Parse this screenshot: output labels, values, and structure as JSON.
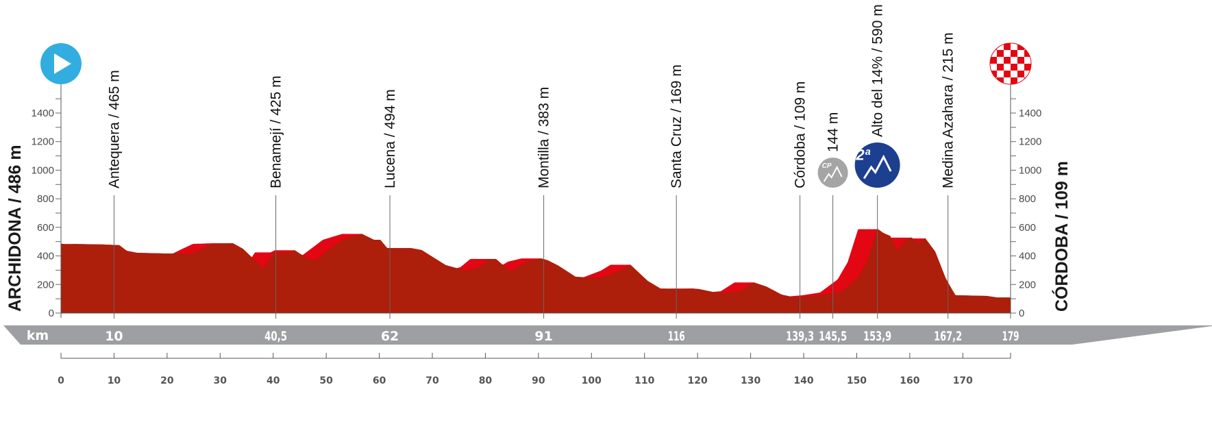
{
  "chart_data": {
    "type": "area",
    "xlabel": "km",
    "xlim": [
      0,
      179
    ],
    "ylim": [
      0,
      1500
    ],
    "y_ticks": [
      0,
      200,
      400,
      600,
      800,
      1000,
      1200,
      1400
    ],
    "x_ticks": [
      0,
      10,
      20,
      30,
      40,
      50,
      60,
      70,
      80,
      90,
      100,
      110,
      120,
      130,
      140,
      150,
      160,
      170
    ],
    "start_label": "ARCHIDONA / 486 m",
    "finish_label": "CÓRDOBA / 109 m",
    "colors": {
      "profile": "#ad1e0b",
      "profile_top": "#e30613",
      "km_bar": "#9d9fa2",
      "start": "#32ade0",
      "cat2": "#1d3f8f",
      "cp": "#a5a5a5"
    },
    "profile": [
      [
        0,
        486
      ],
      [
        1.4,
        475
      ],
      [
        2.3,
        484
      ],
      [
        8,
        480
      ],
      [
        11,
        475
      ],
      [
        12.4,
        436
      ],
      [
        14.3,
        422
      ],
      [
        19.5,
        417
      ],
      [
        24.7,
        417
      ],
      [
        26,
        441
      ],
      [
        28.5,
        484
      ],
      [
        32.4,
        489
      ],
      [
        34.3,
        450
      ],
      [
        36.3,
        379
      ],
      [
        38.2,
        312
      ],
      [
        40.2,
        425
      ],
      [
        42.7,
        417
      ],
      [
        44,
        441
      ],
      [
        46.6,
        379
      ],
      [
        47.9,
        369
      ],
      [
        49.2,
        407
      ],
      [
        53,
        513
      ],
      [
        56.7,
        555
      ],
      [
        59,
        513
      ],
      [
        60.2,
        513
      ],
      [
        61.5,
        455
      ],
      [
        66,
        455
      ],
      [
        68,
        441
      ],
      [
        72.5,
        336
      ],
      [
        76.3,
        297
      ],
      [
        78.9,
        321
      ],
      [
        80.8,
        379
      ],
      [
        82,
        379
      ],
      [
        84.7,
        292
      ],
      [
        87.9,
        360
      ],
      [
        90.5,
        383
      ],
      [
        91.8,
        369
      ],
      [
        93.8,
        331
      ],
      [
        97,
        254
      ],
      [
        99.6,
        249
      ],
      [
        102,
        249
      ],
      [
        105.4,
        297
      ],
      [
        107.3,
        340
      ],
      [
        110.6,
        225
      ],
      [
        113,
        172
      ],
      [
        116.4,
        169
      ],
      [
        119,
        172
      ],
      [
        120.3,
        168
      ],
      [
        124,
        139
      ],
      [
        128,
        153
      ],
      [
        130.6,
        215
      ],
      [
        133,
        185
      ],
      [
        135.8,
        130
      ],
      [
        138.3,
        109
      ],
      [
        140.3,
        115
      ],
      [
        143.5,
        125
      ],
      [
        146.7,
        144
      ],
      [
        150,
        235
      ],
      [
        151.9,
        355
      ],
      [
        153.9,
        590
      ],
      [
        155,
        561
      ],
      [
        156.3,
        540
      ],
      [
        157.7,
        440
      ],
      [
        159,
        500
      ],
      [
        160.3,
        530
      ],
      [
        161.6,
        490
      ],
      [
        162.9,
        525
      ],
      [
        164.8,
        430
      ],
      [
        166.7,
        250
      ],
      [
        167.2,
        215
      ],
      [
        168.6,
        125
      ],
      [
        174.5,
        120
      ],
      [
        176.5,
        109
      ],
      [
        179,
        109
      ]
    ],
    "markers": [
      {
        "km": 10,
        "label": "Antequera / 465 m",
        "km_label": "10"
      },
      {
        "km": 40.5,
        "label": "Benamejí / 425 m",
        "km_label": "40,5"
      },
      {
        "km": 62,
        "label": "Lucena / 494 m",
        "km_label": "62"
      },
      {
        "km": 91,
        "label": "Montilla / 383 m",
        "km_label": "91"
      },
      {
        "km": 116,
        "label": "Santa Cruz / 169 m",
        "km_label": "116"
      },
      {
        "km": 139.3,
        "label": "Córdoba / 109 m",
        "km_label": "139,3"
      },
      {
        "km": 145.5,
        "label": "144 m",
        "km_label": "145,5",
        "badge": "cp",
        "badge_text": "CP"
      },
      {
        "km": 153.9,
        "label": "Alto del 14% / 590 m",
        "km_label": "153,9",
        "badge": "cat2",
        "badge_text": "2ª"
      },
      {
        "km": 167.2,
        "label": "Medina Azahara / 215 m",
        "km_label": "167,2"
      },
      {
        "km": 179,
        "label": "",
        "km_label": "179"
      }
    ],
    "km_bar_label": "km"
  }
}
